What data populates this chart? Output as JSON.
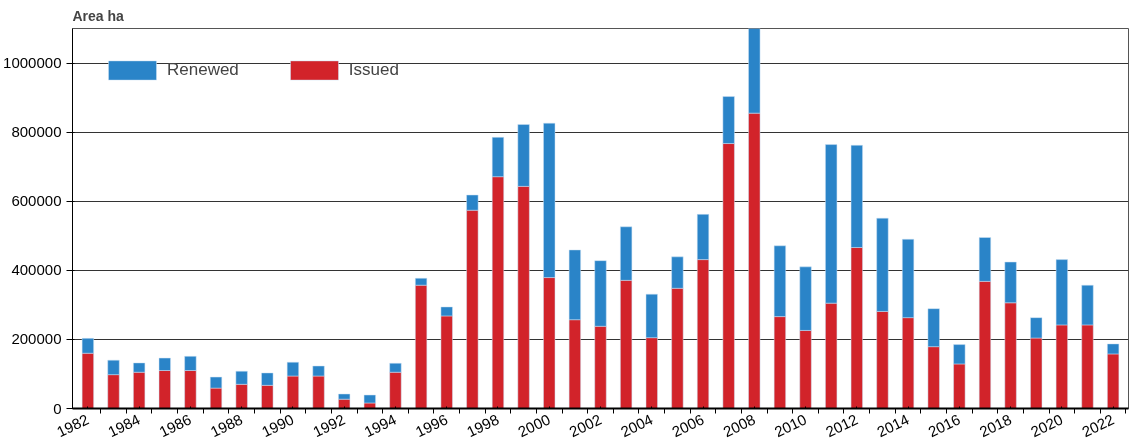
{
  "chart_data": {
    "type": "bar",
    "stacked": true,
    "ylabel": "Area ha",
    "x": [
      1982,
      1983,
      1984,
      1985,
      1986,
      1987,
      1988,
      1989,
      1990,
      1991,
      1992,
      1993,
      1994,
      1995,
      1996,
      1997,
      1998,
      1999,
      2000,
      2001,
      2002,
      2003,
      2004,
      2005,
      2006,
      2007,
      2008,
      2009,
      2010,
      2011,
      2012,
      2013,
      2014,
      2015,
      2016,
      2017,
      2018,
      2019,
      2020,
      2021,
      2022
    ],
    "series": [
      {
        "name": "Issued",
        "color": "#d2232a",
        "values": [
          160000,
          98000,
          105000,
          110000,
          110000,
          59000,
          70000,
          67000,
          94000,
          94000,
          27000,
          16000,
          105000,
          357000,
          268000,
          574000,
          671000,
          643000,
          379000,
          257000,
          238000,
          371000,
          205000,
          348000,
          431000,
          767000,
          855000,
          266000,
          226000,
          305000,
          466000,
          281000,
          263000,
          179000,
          129000,
          368000,
          306000,
          204000,
          242000,
          242000,
          158000
        ]
      },
      {
        "name": "Renewed",
        "color": "#2a84c8",
        "values": [
          43000,
          42000,
          27000,
          36000,
          41000,
          32000,
          38000,
          36000,
          40000,
          29000,
          15000,
          23000,
          26000,
          20000,
          26000,
          44000,
          114000,
          179000,
          447000,
          202000,
          190000,
          155000,
          126000,
          91000,
          131000,
          136000,
          245000,
          205000,
          184000,
          459000,
          296000,
          270000,
          227000,
          110000,
          56000,
          127000,
          118000,
          59000,
          189000,
          115000,
          29000
        ]
      }
    ],
    "xlim": [
      1981.4,
      2022.6
    ],
    "xticks": [
      1982,
      1984,
      1986,
      1988,
      1990,
      1992,
      1994,
      1996,
      1998,
      2000,
      2002,
      2004,
      2006,
      2008,
      2010,
      2012,
      2014,
      2016,
      2018,
      2020,
      2022
    ],
    "ylim": [
      0,
      1100000
    ],
    "yticks": [
      0,
      200000,
      400000,
      600000,
      800000,
      1000000
    ],
    "grid": "y",
    "legend": "top left"
  }
}
